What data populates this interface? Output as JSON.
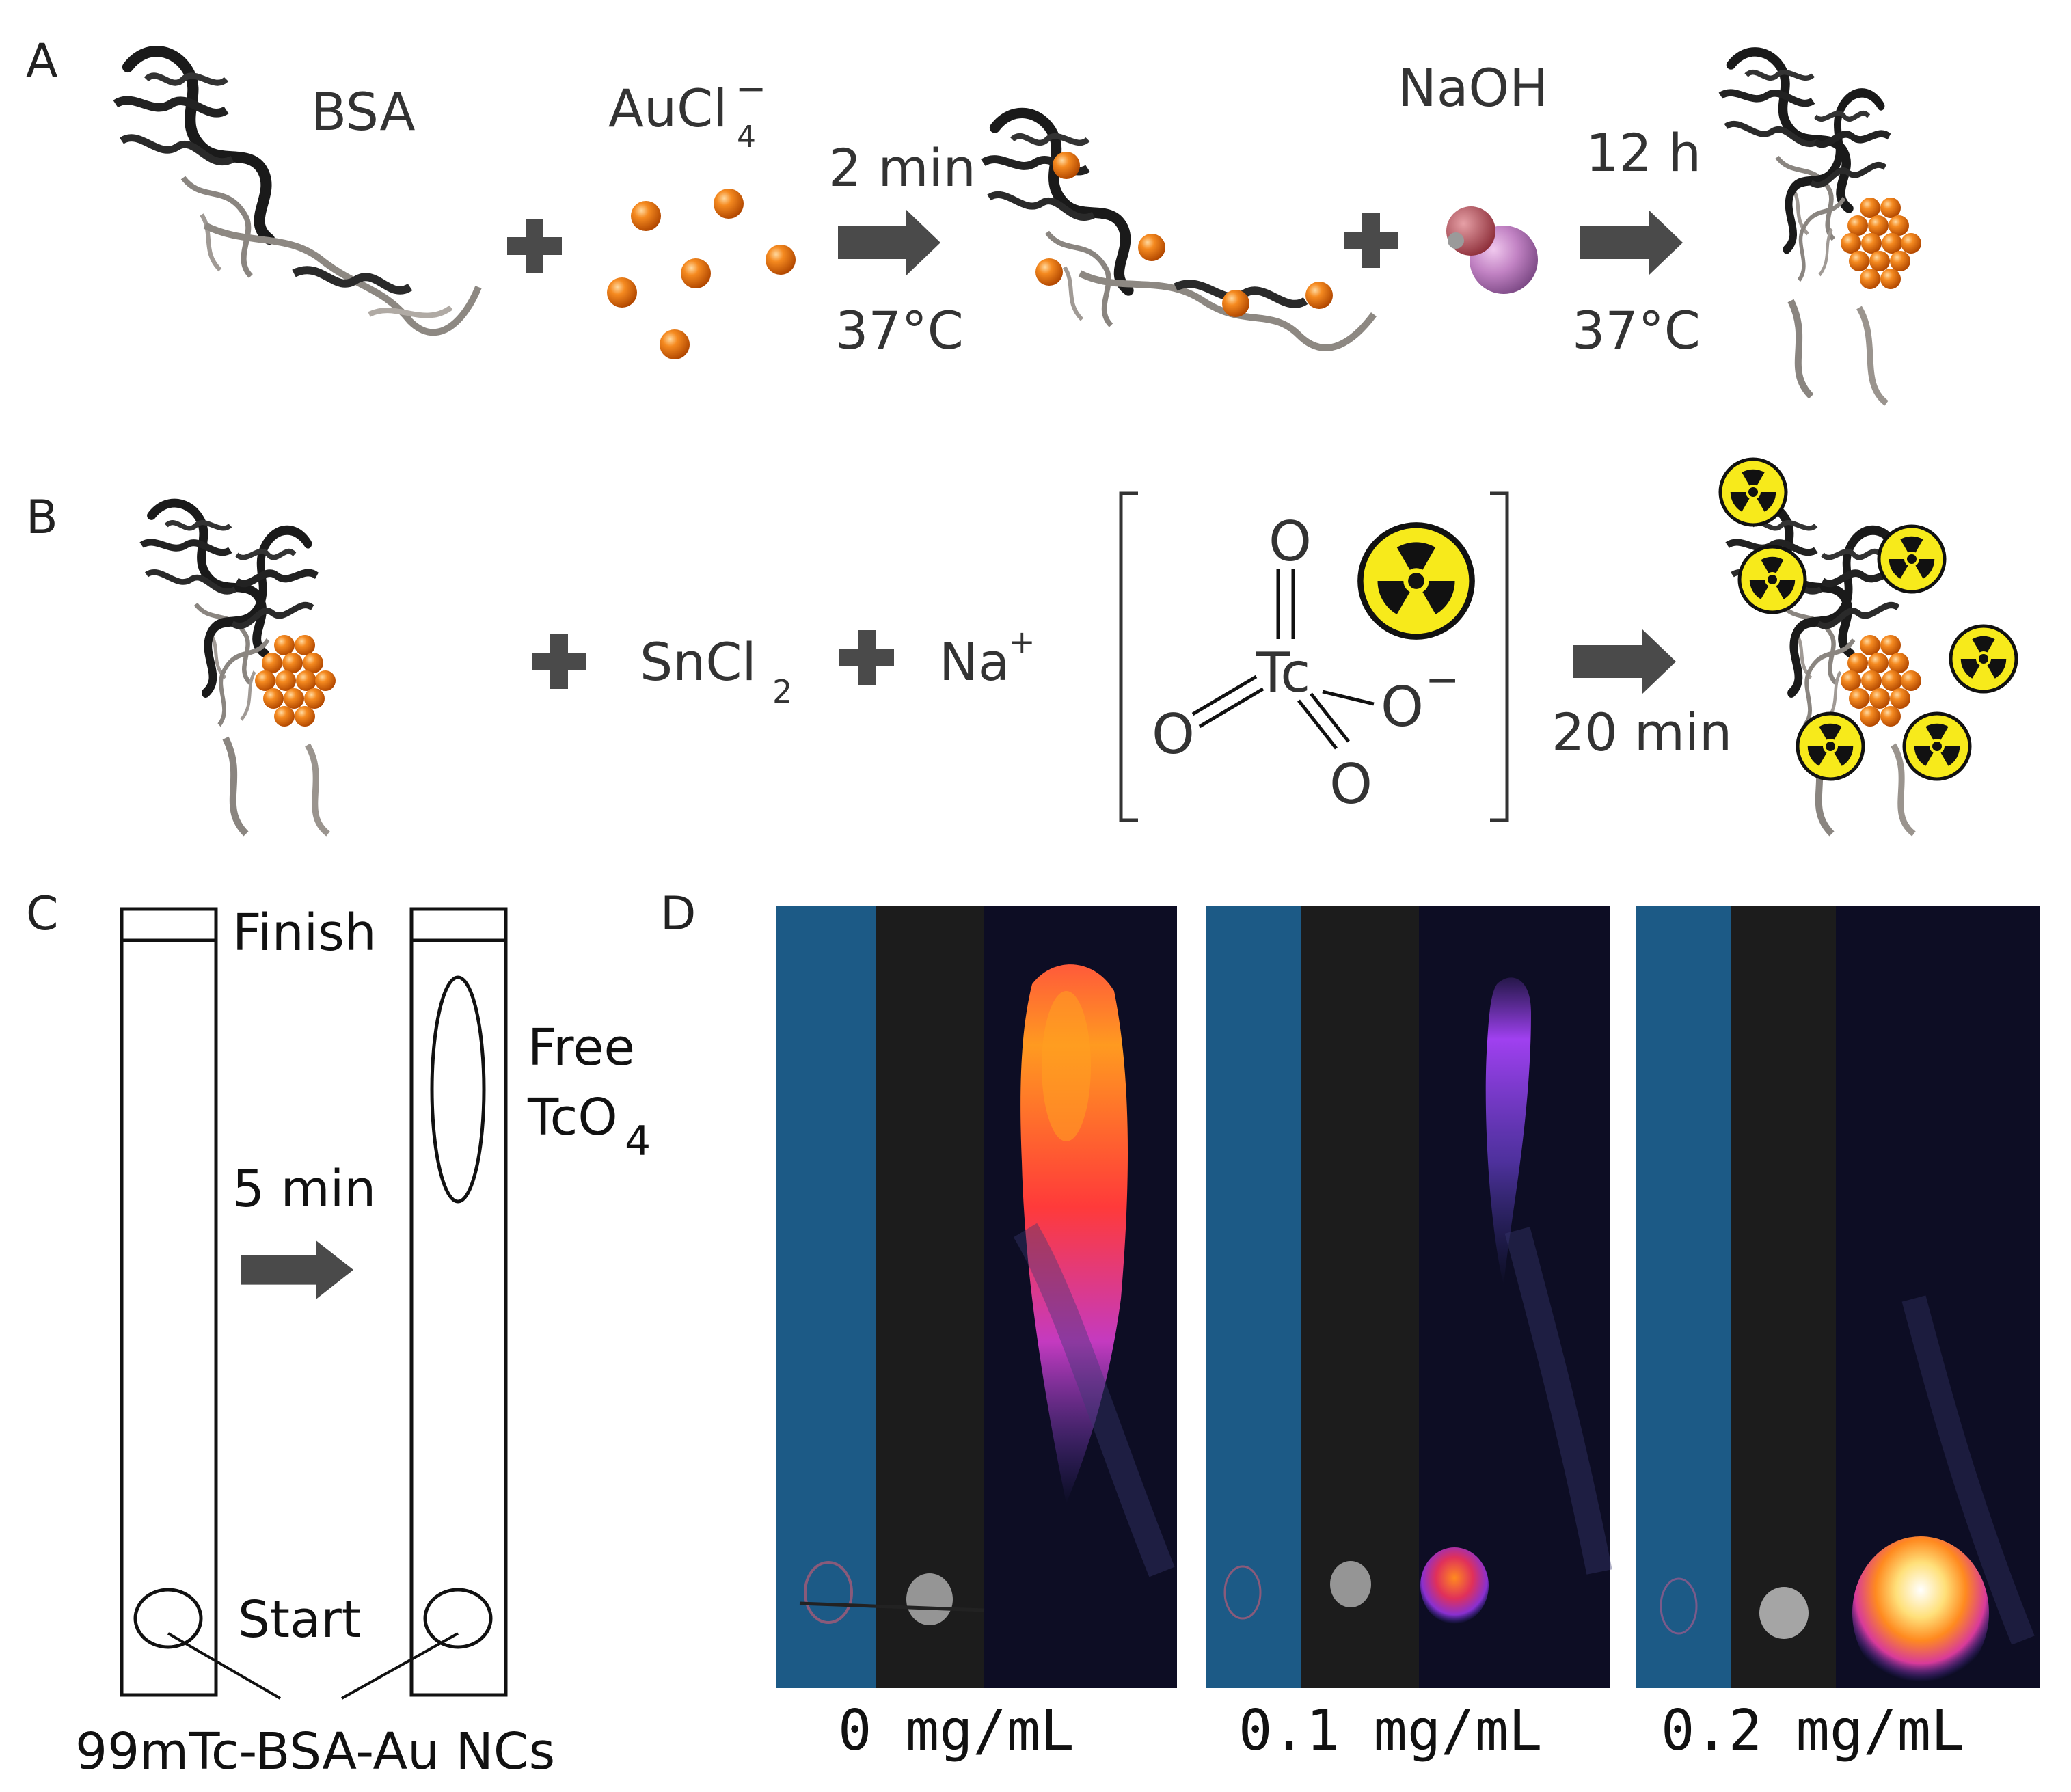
{
  "panels": {
    "a": {
      "letter": "A",
      "bsa": "BSA",
      "aucl_main": "AuCl",
      "aucl_sub": "4",
      "aucl_sup": "−",
      "step1_time": "2 min",
      "step1_temp": "37°C",
      "naoh": "NaOH",
      "step2_time": "12 h",
      "step2_temp": "37°C"
    },
    "b": {
      "letter": "B",
      "sncl_main": "SnCl",
      "sncl_sub": "2",
      "na_main": "Na",
      "na_sup": "+",
      "time": "20 min",
      "tc": "Tc",
      "o_top": "O",
      "o_left": "O",
      "o_bottom": "O",
      "o_right": "O",
      "o_right_charge": "−"
    },
    "c": {
      "letter": "C",
      "finish": "Finish",
      "start": "Start",
      "time": "5 min",
      "free_line1": "Free",
      "free_line2_main": "TcO",
      "free_line2_sub": "4",
      "compound": "99mTc-BSA-Au NCs"
    },
    "d": {
      "letter": "D",
      "captions": [
        "0 mg/mL",
        "0.1 mg/mL",
        "0.2 mg/mL"
      ]
    }
  },
  "colors": {
    "gold": "#f07a12",
    "hazard_yellow": "#f7ea1b",
    "arrow_gray": "#4a4a4a",
    "panel_blue": "#1c5a86",
    "panel_dark": "#1c1c1c",
    "panel_navy": "#0d0d24"
  }
}
